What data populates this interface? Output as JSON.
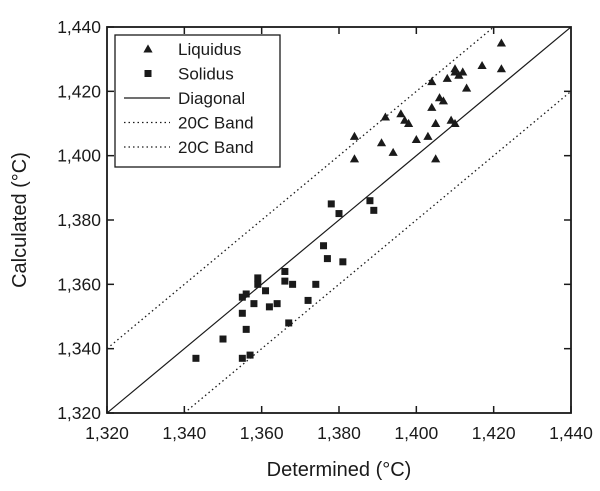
{
  "chart_data": {
    "type": "scatter",
    "xlabel": "Determined (°C)",
    "ylabel": "Calculated (°C)",
    "xlim": [
      1320,
      1440
    ],
    "ylim": [
      1320,
      1440
    ],
    "x_ticks": [
      "1,320",
      "1,340",
      "1,360",
      "1,380",
      "1,400",
      "1,420",
      "1,440"
    ],
    "y_ticks": [
      "1,320",
      "1,340",
      "1,360",
      "1,380",
      "1,400",
      "1,420",
      "1,440"
    ],
    "legend_position": "top-left",
    "grid": false,
    "series": [
      {
        "name": "Liquidus",
        "marker": "triangle",
        "points": [
          [
            1384,
            1406
          ],
          [
            1384,
            1399
          ],
          [
            1391,
            1404
          ],
          [
            1392,
            1412
          ],
          [
            1394,
            1401
          ],
          [
            1396,
            1413
          ],
          [
            1397,
            1411
          ],
          [
            1398,
            1410
          ],
          [
            1400,
            1405
          ],
          [
            1403,
            1406
          ],
          [
            1404,
            1415
          ],
          [
            1404,
            1423
          ],
          [
            1405,
            1399
          ],
          [
            1405,
            1410
          ],
          [
            1406,
            1418
          ],
          [
            1407,
            1417
          ],
          [
            1408,
            1424
          ],
          [
            1409,
            1411
          ],
          [
            1410,
            1410
          ],
          [
            1410,
            1426
          ],
          [
            1410,
            1427
          ],
          [
            1411,
            1425
          ],
          [
            1412,
            1426
          ],
          [
            1413,
            1421
          ],
          [
            1417,
            1428
          ],
          [
            1422,
            1435
          ],
          [
            1422,
            1427
          ]
        ]
      },
      {
        "name": "Solidus",
        "marker": "square",
        "points": [
          [
            1343,
            1337
          ],
          [
            1350,
            1343
          ],
          [
            1355,
            1337
          ],
          [
            1355,
            1351
          ],
          [
            1355,
            1356
          ],
          [
            1356,
            1357
          ],
          [
            1356,
            1346
          ],
          [
            1357,
            1338
          ],
          [
            1358,
            1354
          ],
          [
            1359,
            1362
          ],
          [
            1359,
            1360
          ],
          [
            1361,
            1358
          ],
          [
            1362,
            1353
          ],
          [
            1364,
            1354
          ],
          [
            1366,
            1364
          ],
          [
            1366,
            1361
          ],
          [
            1367,
            1348
          ],
          [
            1368,
            1360
          ],
          [
            1372,
            1355
          ],
          [
            1374,
            1360
          ],
          [
            1376,
            1372
          ],
          [
            1377,
            1368
          ],
          [
            1378,
            1385
          ],
          [
            1380,
            1382
          ],
          [
            1381,
            1367
          ],
          [
            1388,
            1386
          ],
          [
            1389,
            1383
          ]
        ]
      },
      {
        "name": "Diagonal",
        "style": "solid",
        "line": [
          [
            1320,
            1320
          ],
          [
            1440,
            1440
          ]
        ]
      },
      {
        "name": "20C Band",
        "style": "dotted",
        "line": [
          [
            1320,
            1340
          ],
          [
            1420,
            1440
          ]
        ]
      },
      {
        "name": "20C Band",
        "style": "dotted",
        "line": [
          [
            1340,
            1320
          ],
          [
            1440,
            1420
          ]
        ]
      }
    ]
  }
}
